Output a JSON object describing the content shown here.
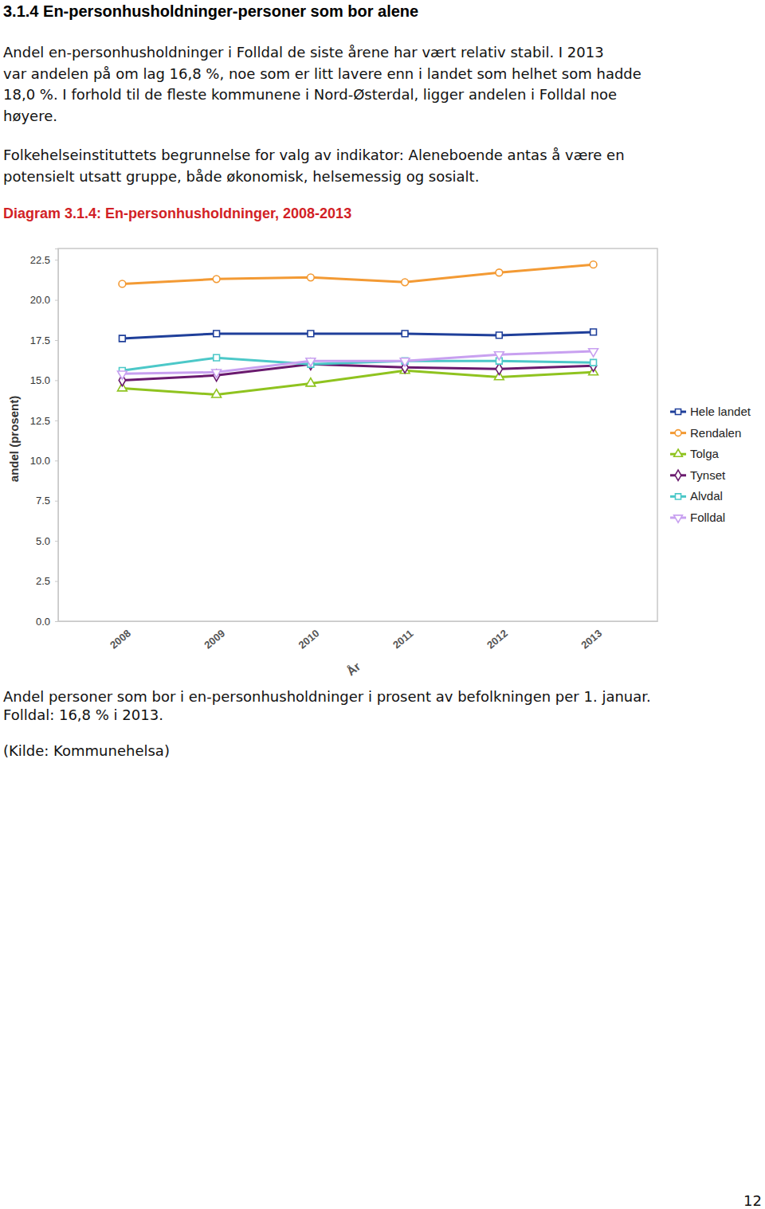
{
  "heading": "3.1.4 En-personhusholdninger-personer som bor alene",
  "paragraphs": [
    [
      "Andel en-personhusholdninger i Folldal de siste årene har vært relativ stabil. I 2013",
      "var andelen på om lag 16,8 %, noe som er litt lavere enn i landet som helhet som hadde",
      "18,0 %.  I forhold til de fleste kommunene i Nord-Østerdal, ligger andelen i Folldal noe",
      "høyere."
    ],
    [
      "Folkehelseinstituttets begrunnelse for valg av indikator: Aleneboende antas å være en",
      "potensielt utsatt gruppe, både økonomisk, helsemessig og sosialt."
    ]
  ],
  "chart_data": {
    "type": "line",
    "title": "Diagram 3.1.4: En-personhusholdninger, 2008-2013",
    "xlabel": "År",
    "ylabel": "andel (prosent)",
    "categories": [
      "2008",
      "2009",
      "2010",
      "2011",
      "2012",
      "2013"
    ],
    "series": [
      {
        "name": "Hele landet",
        "color": "#1f3f9a",
        "marker": "square",
        "values": [
          17.6,
          17.9,
          17.9,
          17.9,
          17.8,
          18.0
        ]
      },
      {
        "name": "Rendalen",
        "color": "#f39a34",
        "marker": "circle",
        "values": [
          21.0,
          21.3,
          21.4,
          21.1,
          21.7,
          22.2
        ]
      },
      {
        "name": "Tolga",
        "color": "#8fc31f",
        "marker": "triangle",
        "values": [
          14.5,
          14.1,
          14.8,
          15.6,
          15.2,
          15.5
        ]
      },
      {
        "name": "Tynset",
        "color": "#6a1a6e",
        "marker": "diamond",
        "values": [
          15.0,
          15.3,
          16.0,
          15.8,
          15.7,
          15.9
        ]
      },
      {
        "name": "Alvdal",
        "color": "#4cc8c8",
        "marker": "square",
        "values": [
          15.6,
          16.4,
          16.0,
          16.2,
          16.2,
          16.1
        ]
      },
      {
        "name": "Folldal",
        "color": "#c8a0f0",
        "marker": "triangle-down",
        "values": [
          15.4,
          15.5,
          16.2,
          16.2,
          16.6,
          16.8
        ]
      }
    ],
    "ylim": [
      0,
      23.2
    ],
    "yticks": [
      {
        "value": 0,
        "label": "0.0"
      },
      2.5,
      {
        "value": 5,
        "label": "5.0"
      },
      7.5,
      {
        "value": 10,
        "label": "10.0"
      },
      12.5,
      {
        "value": 15,
        "label": "15.0"
      },
      17.5,
      {
        "value": 20,
        "label": "20.0"
      },
      22.5
    ],
    "grid": false,
    "legend": "right"
  },
  "caption": [
    "Andel personer som bor i en-personhusholdninger i prosent av befolkningen per 1. januar.",
    "Folldal: 16,8 % i 2013."
  ],
  "source": "(Kilde: Kommunehelsa)",
  "page_number": "12"
}
